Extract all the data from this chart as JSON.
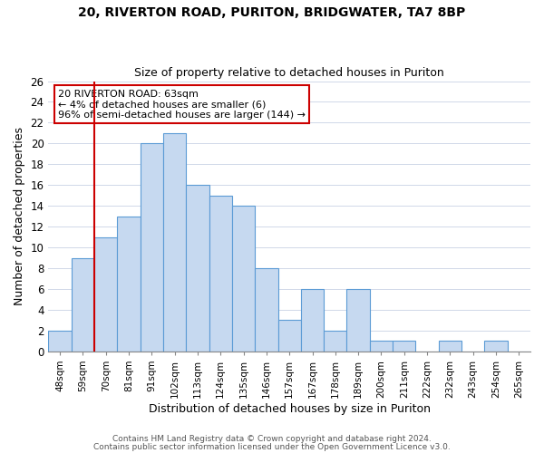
{
  "title1": "20, RIVERTON ROAD, PURITON, BRIDGWATER, TA7 8BP",
  "title2": "Size of property relative to detached houses in Puriton",
  "xlabel": "Distribution of detached houses by size in Puriton",
  "ylabel": "Number of detached properties",
  "categories": [
    "48sqm",
    "59sqm",
    "70sqm",
    "81sqm",
    "91sqm",
    "102sqm",
    "113sqm",
    "124sqm",
    "135sqm",
    "146sqm",
    "157sqm",
    "167sqm",
    "178sqm",
    "189sqm",
    "200sqm",
    "211sqm",
    "222sqm",
    "232sqm",
    "243sqm",
    "254sqm",
    "265sqm"
  ],
  "values": [
    2,
    9,
    11,
    13,
    20,
    21,
    16,
    15,
    14,
    8,
    3,
    6,
    2,
    6,
    1,
    1,
    0,
    1,
    0,
    1,
    0
  ],
  "bar_color": "#c6d9f0",
  "bar_edge_color": "#5b9bd5",
  "vline_color": "#cc0000",
  "annotation_title": "20 RIVERTON ROAD: 63sqm",
  "annotation_line1": "← 4% of detached houses are smaller (6)",
  "annotation_line2": "96% of semi-detached houses are larger (144) →",
  "annotation_box_color": "#ffffff",
  "annotation_box_edge": "#cc0000",
  "ylim": [
    0,
    26
  ],
  "yticks": [
    0,
    2,
    4,
    6,
    8,
    10,
    12,
    14,
    16,
    18,
    20,
    22,
    24,
    26
  ],
  "footer1": "Contains HM Land Registry data © Crown copyright and database right 2024.",
  "footer2": "Contains public sector information licensed under the Open Government Licence v3.0."
}
